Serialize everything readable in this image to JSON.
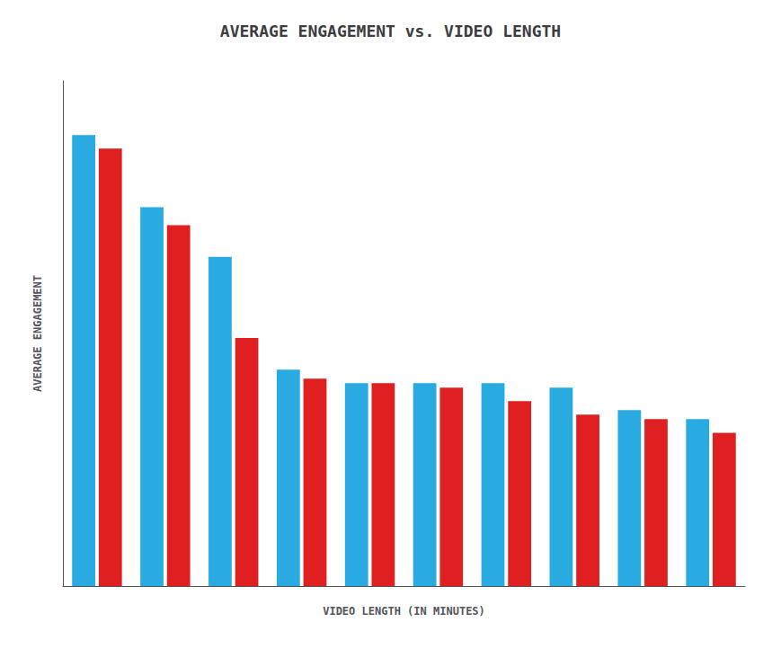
{
  "chart_data": {
    "type": "bar",
    "title": "AVERAGE ENGAGEMENT vs. VIDEO LENGTH",
    "xlabel": "VIDEO LENGTH (IN MINUTES)",
    "ylabel": "AVERAGE ENGAGEMENT",
    "categories": [
      null,
      null,
      null,
      null,
      null,
      null,
      null,
      null,
      null,
      null
    ],
    "series": [
      {
        "color": "#29ABE2",
        "values": [
          1.0,
          0.84,
          0.73,
          0.48,
          0.45,
          0.45,
          0.45,
          0.44,
          0.39,
          0.37
        ]
      },
      {
        "color": "#E02020",
        "values": [
          0.97,
          0.8,
          0.55,
          0.46,
          0.45,
          0.44,
          0.41,
          0.38,
          0.37,
          0.34
        ]
      }
    ],
    "ylim": [
      0,
      1.12
    ],
    "grid": false,
    "tick_labels": false
  }
}
